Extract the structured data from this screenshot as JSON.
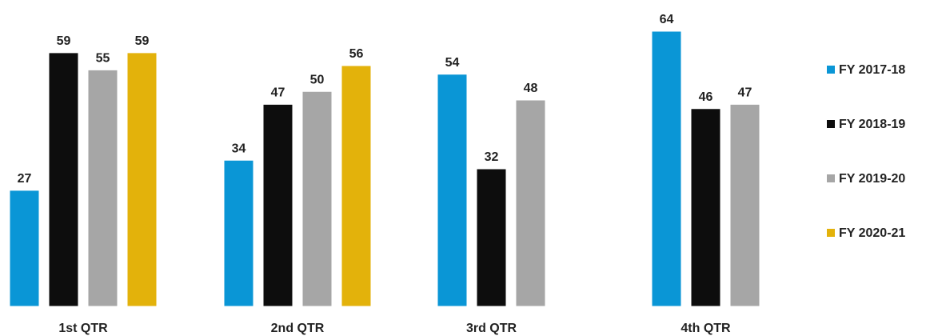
{
  "chart_data": {
    "type": "bar",
    "title": "",
    "xlabel": "",
    "ylabel": "",
    "ylim": [
      0,
      64
    ],
    "grid": false,
    "legend_position": "right",
    "categories": [
      "1st QTR",
      "2nd QTR",
      "3rd QTR",
      "4th QTR"
    ],
    "series": [
      {
        "name": "FY 2017-18",
        "color": "#0a96d6",
        "values": [
          27,
          34,
          54,
          64
        ]
      },
      {
        "name": "FY 2018-19",
        "color": "#0d0d0d",
        "values": [
          59,
          47,
          32,
          46
        ]
      },
      {
        "name": "FY 2019-20",
        "color": "#a6a6a6",
        "values": [
          55,
          50,
          48,
          47
        ]
      },
      {
        "name": "FY 2020-21",
        "color": "#e3b20b",
        "values": [
          59,
          56,
          null,
          null
        ]
      }
    ]
  }
}
